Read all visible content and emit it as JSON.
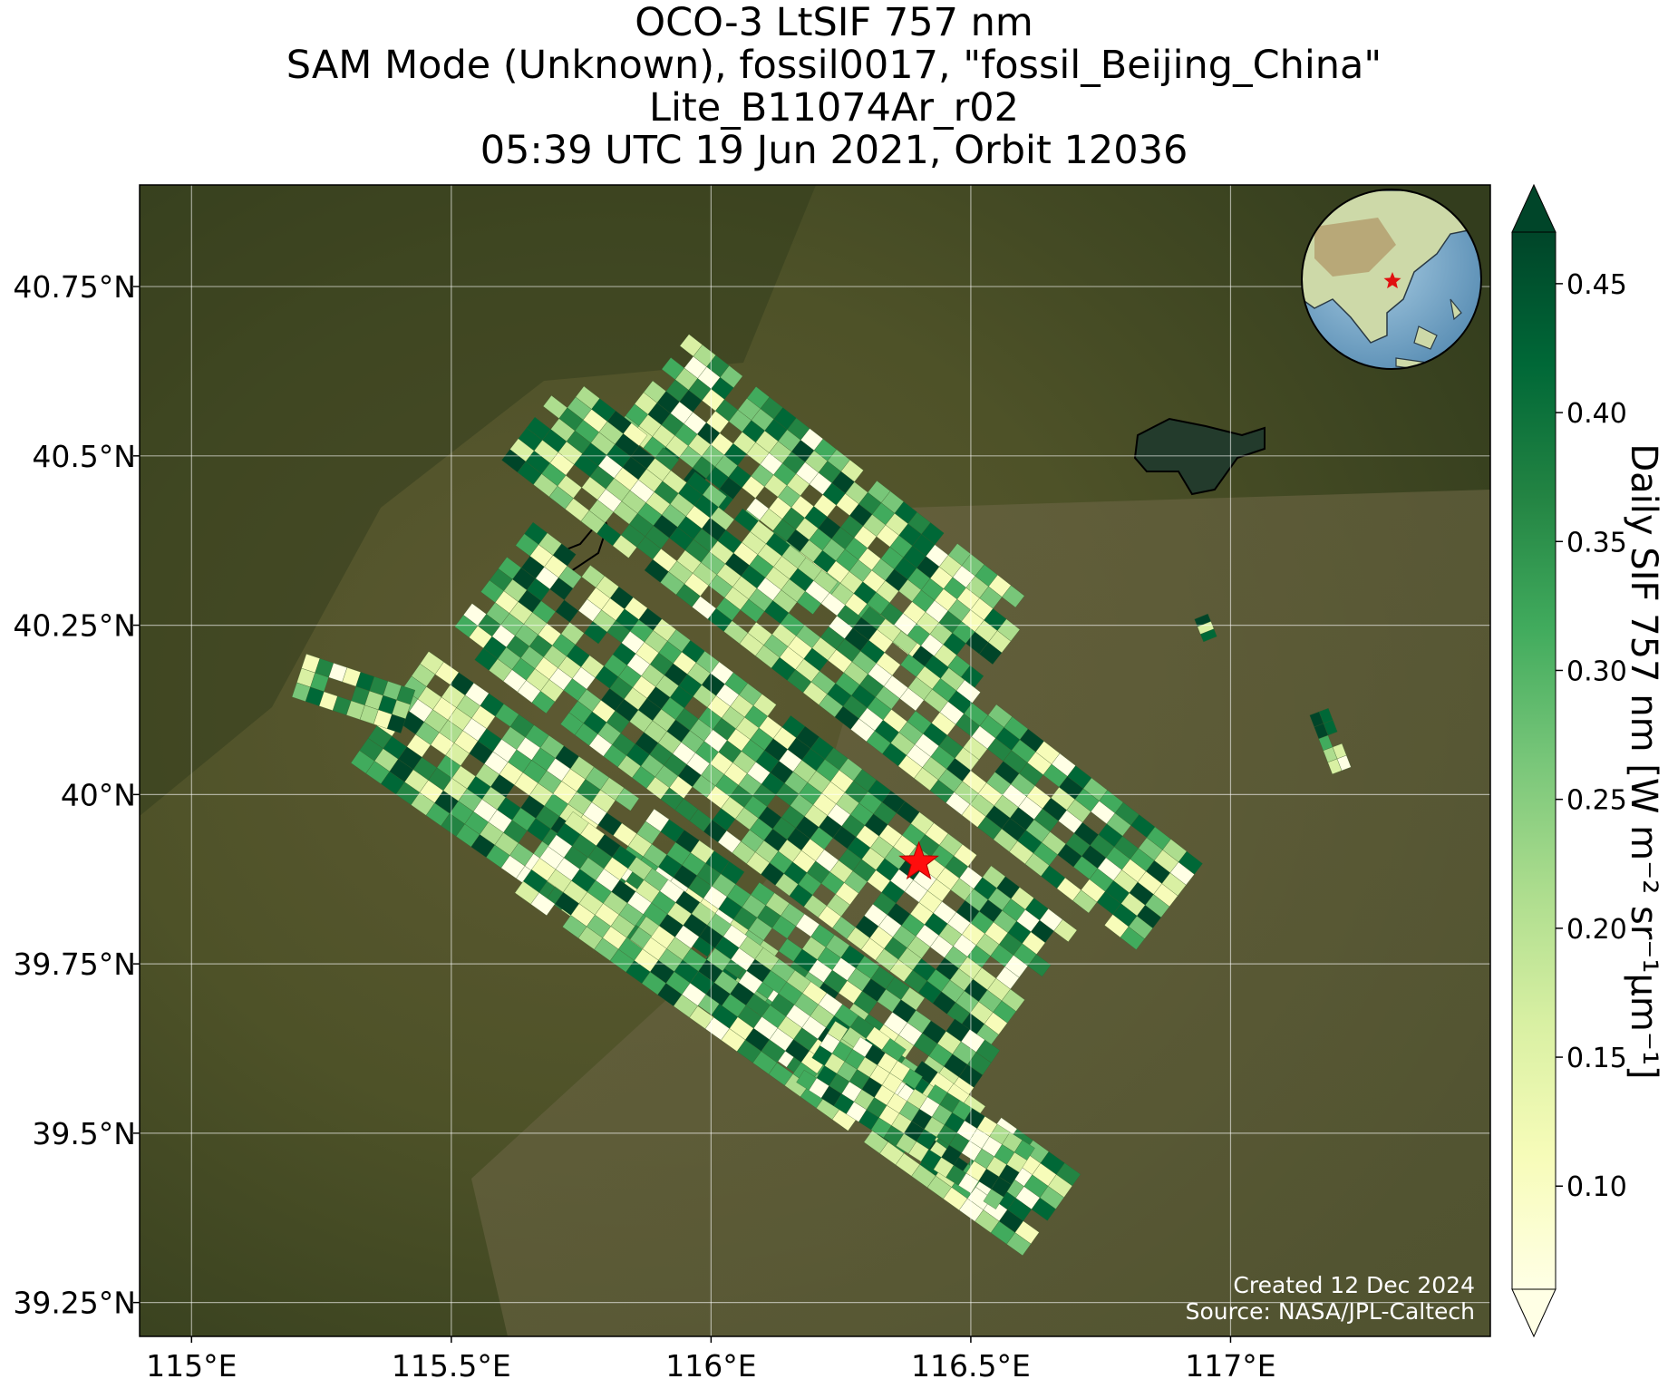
{
  "title": {
    "line1": "OCO-3 LtSIF 757 nm",
    "line2": "SAM Mode (Unknown), fossil0017, \"fossil_Beijing_China\"",
    "line3": "Lite_B11074Ar_r02",
    "line4": "05:39 UTC 19 Jun 2021, Orbit 12036"
  },
  "map": {
    "lon_range": [
      114.9,
      117.5
    ],
    "lat_range": [
      39.2,
      40.9
    ],
    "x_ticks": [
      {
        "value": 115.0,
        "label": "115°E"
      },
      {
        "value": 115.5,
        "label": "115.5°E"
      },
      {
        "value": 116.0,
        "label": "116°E"
      },
      {
        "value": 116.5,
        "label": "116.5°E"
      },
      {
        "value": 117.0,
        "label": "117°E"
      }
    ],
    "y_ticks": [
      {
        "value": 39.25,
        "label": "39.25°N"
      },
      {
        "value": 39.5,
        "label": "39.5°N"
      },
      {
        "value": 39.75,
        "label": "39.75°N"
      },
      {
        "value": 40.0,
        "label": "40°N"
      },
      {
        "value": 40.25,
        "label": "40.25°N"
      },
      {
        "value": 40.5,
        "label": "40.5°N"
      },
      {
        "value": 40.75,
        "label": "40.75°N"
      }
    ],
    "gridlines": true,
    "basemap": "satellite imagery",
    "target_marker": {
      "lon": 116.4,
      "lat": 39.9,
      "symbol": "red star"
    },
    "inset_globe": {
      "position": "top-right",
      "marker": "red star over Beijing"
    }
  },
  "colorbar": {
    "label": "Daily SIF 757 nm [W m⁻² sr⁻¹μm⁻¹]",
    "colormap": "YlGn",
    "min": 0.06,
    "max": 0.47,
    "extend": "both",
    "ticks": [
      {
        "value": 0.1,
        "label": "0.10"
      },
      {
        "value": 0.15,
        "label": "0.15"
      },
      {
        "value": 0.2,
        "label": "0.20"
      },
      {
        "value": 0.25,
        "label": "0.25"
      },
      {
        "value": 0.3,
        "label": "0.30"
      },
      {
        "value": 0.35,
        "label": "0.35"
      },
      {
        "value": 0.4,
        "label": "0.40"
      },
      {
        "value": 0.45,
        "label": "0.45"
      }
    ],
    "colors": [
      "#ffffe5",
      "#f7fcb9",
      "#d9f0a3",
      "#addd8e",
      "#78c679",
      "#41ab5d",
      "#238443",
      "#006837",
      "#004529"
    ]
  },
  "credits": {
    "line1": "Created 12 Dec 2024",
    "line2": "Source: NASA/JPL-Caltech"
  }
}
